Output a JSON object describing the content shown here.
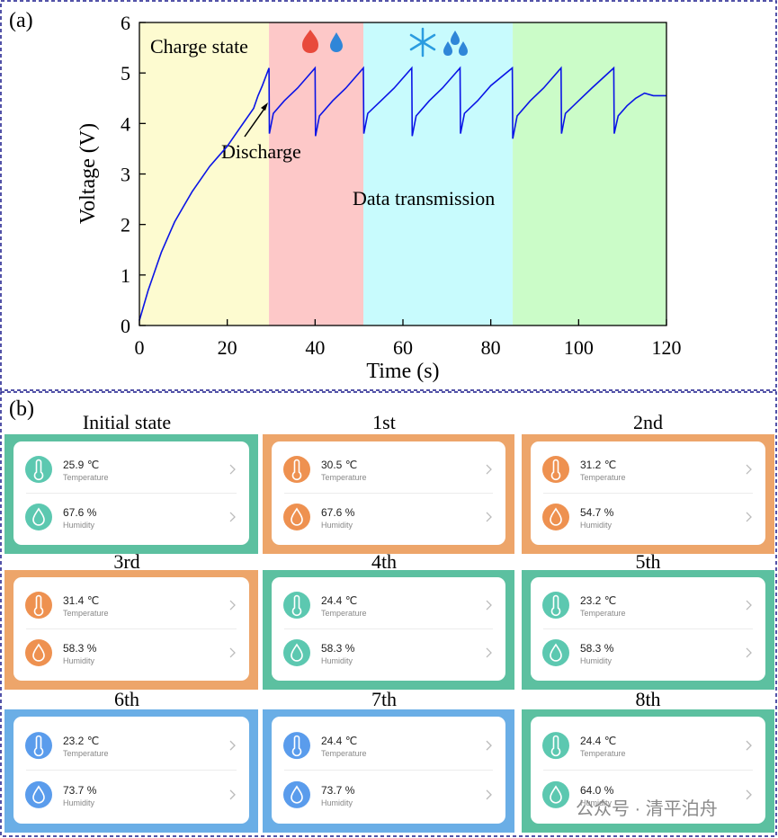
{
  "chart_data": {
    "type": "line",
    "panel_label": "(a)",
    "xlabel": "Time (s)",
    "ylabel": "Voltage (V)",
    "xlim": [
      0,
      120
    ],
    "ylim": [
      0,
      6
    ],
    "xticks": [
      0,
      20,
      40,
      60,
      80,
      100,
      120
    ],
    "yticks": [
      0,
      1,
      2,
      3,
      4,
      5,
      6
    ],
    "color": "#0a14e6",
    "regions": [
      {
        "start": 0,
        "end": 29.5,
        "color": "#fdfbd0"
      },
      {
        "start": 29.5,
        "end": 51,
        "color": "#fdc8c8"
      },
      {
        "start": 51,
        "end": 85,
        "color": "#c8fbfd"
      },
      {
        "start": 85,
        "end": 120,
        "color": "#cbfcc8"
      }
    ],
    "annotations": [
      "Charge state",
      "Discharge",
      "Data transmission"
    ],
    "x": [
      0,
      1,
      2,
      3,
      4,
      5,
      6,
      7,
      8,
      10,
      12,
      14,
      16,
      18,
      20,
      22,
      24,
      26,
      27,
      28,
      29.5,
      29.6,
      30.5,
      33,
      36,
      40,
      40.1,
      41,
      44,
      47,
      51,
      51.1,
      52,
      55,
      58,
      62,
      62.1,
      63,
      66,
      69,
      73,
      73.1,
      74,
      77,
      80,
      84.9,
      85,
      86,
      89,
      92,
      96,
      96.1,
      97,
      100,
      103,
      108,
      108.1,
      109,
      111,
      113,
      115,
      117,
      120
    ],
    "values": [
      0.1,
      0.4,
      0.7,
      0.95,
      1.2,
      1.45,
      1.65,
      1.85,
      2.05,
      2.35,
      2.65,
      2.9,
      3.15,
      3.35,
      3.55,
      3.8,
      4.05,
      4.3,
      4.55,
      4.75,
      5.1,
      3.8,
      4.2,
      4.45,
      4.7,
      5.1,
      3.75,
      4.15,
      4.45,
      4.7,
      5.1,
      3.8,
      4.2,
      4.45,
      4.7,
      5.1,
      3.75,
      4.15,
      4.45,
      4.7,
      5.1,
      3.8,
      4.2,
      4.45,
      4.75,
      5.1,
      3.7,
      4.15,
      4.45,
      4.7,
      5.1,
      3.8,
      4.2,
      4.45,
      4.7,
      5.1,
      3.8,
      4.15,
      4.35,
      4.5,
      4.6,
      4.55,
      4.55
    ]
  },
  "panel_b": {
    "panel_label": "(b)",
    "watermark": "公众号 · 清平泊舟",
    "cards": [
      {
        "label": "Initial state",
        "border_color": "#5cc0a0",
        "temp_icon_color": "#5cc8b0",
        "hum_icon_color": "#5cc8b0",
        "temperature": "25.9 ℃",
        "temperature_label": "Temperature",
        "humidity": "67.6 %",
        "humidity_label": "Humidity"
      },
      {
        "label": "1st",
        "border_color": "#eda56a",
        "temp_icon_color": "#ee9150",
        "hum_icon_color": "#ee9150",
        "temperature": "30.5 ℃",
        "temperature_label": "Temperature",
        "humidity": "67.6 %",
        "humidity_label": "Humidity"
      },
      {
        "label": "2nd",
        "border_color": "#eda56a",
        "temp_icon_color": "#ee9150",
        "hum_icon_color": "#ee9150",
        "temperature": "31.2 ℃",
        "temperature_label": "Temperature",
        "humidity": "54.7 %",
        "humidity_label": "Humidity"
      },
      {
        "label": "3rd",
        "border_color": "#eda56a",
        "temp_icon_color": "#ee9150",
        "hum_icon_color": "#ee9150",
        "temperature": "31.4 ℃",
        "temperature_label": "Temperature",
        "humidity": "58.3 %",
        "humidity_label": "Humidity"
      },
      {
        "label": "4th",
        "border_color": "#5cc0a0",
        "temp_icon_color": "#5cc8b0",
        "hum_icon_color": "#5cc8b0",
        "temperature": "24.4 ℃",
        "temperature_label": "Temperature",
        "humidity": "58.3 %",
        "humidity_label": "Humidity"
      },
      {
        "label": "5th",
        "border_color": "#5cc0a0",
        "temp_icon_color": "#5cc8b0",
        "hum_icon_color": "#5cc8b0",
        "temperature": "23.2 ℃",
        "temperature_label": "Temperature",
        "humidity": "58.3 %",
        "humidity_label": "Humidity"
      },
      {
        "label": "6th",
        "border_color": "#6aaee6",
        "temp_icon_color": "#5a9cec",
        "hum_icon_color": "#5a9cec",
        "temperature": "23.2 ℃",
        "temperature_label": "Temperature",
        "humidity": "73.7 %",
        "humidity_label": "Humidity"
      },
      {
        "label": "7th",
        "border_color": "#6aaee6",
        "temp_icon_color": "#5a9cec",
        "hum_icon_color": "#5a9cec",
        "temperature": "24.4 ℃",
        "temperature_label": "Temperature",
        "humidity": "73.7 %",
        "humidity_label": "Humidity"
      },
      {
        "label": "8th",
        "border_color": "#5cc0a0",
        "temp_icon_color": "#5cc8b0",
        "hum_icon_color": "#5cc8b0",
        "temperature": "24.4 ℃",
        "temperature_label": "Temperature",
        "humidity": "64.0 %",
        "humidity_label": "Humidity"
      }
    ]
  }
}
